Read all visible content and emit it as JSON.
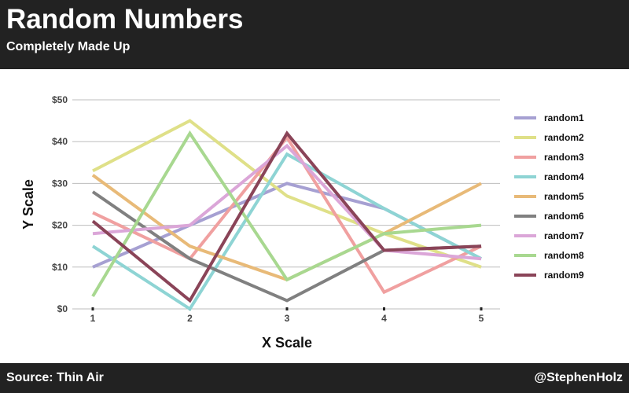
{
  "header": {
    "title": "Random Numbers",
    "subtitle": "Completely Made Up"
  },
  "footer": {
    "source": "Source: Thin Air",
    "credit": "@StephenHolz"
  },
  "chart_data": {
    "type": "line",
    "xlabel": "X Scale",
    "ylabel": "Y Scale",
    "x": [
      1,
      2,
      3,
      4,
      5
    ],
    "xlim": [
      1,
      5
    ],
    "ylim": [
      0,
      50
    ],
    "y_ticks": [
      0,
      10,
      20,
      30,
      40,
      50
    ],
    "y_tick_labels": [
      "$0",
      "$10",
      "$20",
      "$30",
      "$40",
      "$50"
    ],
    "x_tick_labels": [
      "1",
      "2",
      "3",
      "4",
      "5"
    ],
    "grid": "horizontal",
    "legend_position": "right",
    "series": [
      {
        "name": "random1",
        "color": "#a6a0d2",
        "values": [
          10,
          20,
          30,
          24,
          12
        ]
      },
      {
        "name": "random2",
        "color": "#dfe088",
        "values": [
          33,
          45,
          27,
          18,
          10
        ]
      },
      {
        "name": "random3",
        "color": "#f0a0a0",
        "values": [
          23,
          12,
          41,
          4,
          15
        ]
      },
      {
        "name": "random4",
        "color": "#8ed4d4",
        "values": [
          15,
          0,
          37,
          24,
          12
        ]
      },
      {
        "name": "random5",
        "color": "#e8ba78",
        "values": [
          32,
          15,
          7,
          18,
          30
        ]
      },
      {
        "name": "random6",
        "color": "#808080",
        "values": [
          28,
          12,
          2,
          14,
          15
        ]
      },
      {
        "name": "random7",
        "color": "#dba6d8",
        "values": [
          18,
          20,
          39,
          14,
          12
        ]
      },
      {
        "name": "random8",
        "color": "#a8d890",
        "values": [
          3,
          42,
          7,
          18,
          20
        ]
      },
      {
        "name": "random9",
        "color": "#8a4458",
        "values": [
          21,
          2,
          42,
          14,
          15
        ]
      }
    ]
  }
}
